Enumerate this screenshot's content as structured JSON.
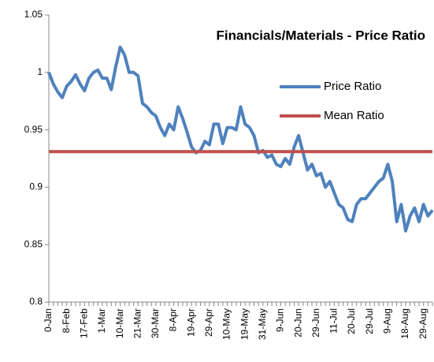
{
  "chart_data": {
    "type": "line",
    "title": "Financials/Materials - Price Ratio",
    "categories": [
      "0-Jan",
      null,
      null,
      null,
      "8-Feb",
      null,
      null,
      null,
      "17-Feb",
      null,
      null,
      null,
      "1-Mar",
      null,
      null,
      null,
      "10-Mar",
      null,
      null,
      null,
      "21-Mar",
      null,
      null,
      null,
      "30-Mar",
      null,
      null,
      null,
      "8-Apr",
      null,
      null,
      null,
      "19-Apr",
      null,
      null,
      null,
      "29-Apr",
      null,
      null,
      null,
      "10-May",
      null,
      null,
      null,
      "19-May",
      null,
      null,
      null,
      "31-May",
      null,
      null,
      null,
      "9-Jun",
      null,
      null,
      null,
      "20-Jun",
      null,
      null,
      null,
      "29-Jun",
      null,
      null,
      null,
      "11-Jul",
      null,
      null,
      null,
      "20-Jul",
      null,
      null,
      null,
      "29-Jul",
      null,
      null,
      null,
      "9-Aug",
      null,
      null,
      null,
      "18-Aug",
      null,
      null,
      null,
      "29-Aug",
      null,
      null
    ],
    "series": [
      {
        "name": "Price Ratio",
        "color": "#4f81bd",
        "values": [
          1.0,
          0.99,
          0.983,
          0.978,
          0.988,
          0.992,
          0.998,
          0.99,
          0.984,
          0.995,
          1.0,
          1.002,
          0.995,
          0.995,
          0.985,
          1.005,
          1.022,
          1.015,
          1.0,
          1.0,
          0.997,
          0.973,
          0.97,
          0.965,
          0.962,
          0.952,
          0.945,
          0.955,
          0.95,
          0.97,
          0.96,
          0.948,
          0.935,
          0.93,
          0.932,
          0.94,
          0.937,
          0.955,
          0.955,
          0.938,
          0.952,
          0.952,
          0.95,
          0.97,
          0.955,
          0.952,
          0.945,
          0.93,
          0.932,
          0.926,
          0.928,
          0.92,
          0.918,
          0.925,
          0.92,
          0.935,
          0.945,
          0.93,
          0.915,
          0.92,
          0.91,
          0.912,
          0.9,
          0.905,
          0.895,
          0.885,
          0.882,
          0.872,
          0.87,
          0.885,
          0.89,
          0.89,
          0.895,
          0.9,
          0.905,
          0.908,
          0.92,
          0.905,
          0.87,
          0.885,
          0.862,
          0.875,
          0.882,
          0.87,
          0.885,
          0.875,
          0.88
        ]
      },
      {
        "name": "Mean Ratio",
        "color": "#c0504d",
        "values": [
          0.931,
          0.931,
          0.931,
          0.931,
          0.931,
          0.931,
          0.931,
          0.931,
          0.931,
          0.931,
          0.931,
          0.931,
          0.931,
          0.931,
          0.931,
          0.931,
          0.931,
          0.931,
          0.931,
          0.931,
          0.931,
          0.931,
          0.931,
          0.931,
          0.931,
          0.931,
          0.931,
          0.931,
          0.931,
          0.931,
          0.931,
          0.931,
          0.931,
          0.931,
          0.931,
          0.931,
          0.931,
          0.931,
          0.931,
          0.931,
          0.931,
          0.931,
          0.931,
          0.931,
          0.931,
          0.931,
          0.931,
          0.931,
          0.931,
          0.931,
          0.931,
          0.931,
          0.931,
          0.931,
          0.931,
          0.931,
          0.931,
          0.931,
          0.931,
          0.931,
          0.931,
          0.931,
          0.931,
          0.931,
          0.931,
          0.931,
          0.931,
          0.931,
          0.931,
          0.931,
          0.931,
          0.931,
          0.931,
          0.931,
          0.931,
          0.931,
          0.931,
          0.931,
          0.931,
          0.931,
          0.931,
          0.931,
          0.931,
          0.931,
          0.931,
          0.931,
          0.931
        ]
      }
    ],
    "ylim": [
      0.8,
      1.05
    ],
    "yticks": [
      0.8,
      0.85,
      0.9,
      0.95,
      1,
      1.05
    ],
    "legend": "right"
  }
}
